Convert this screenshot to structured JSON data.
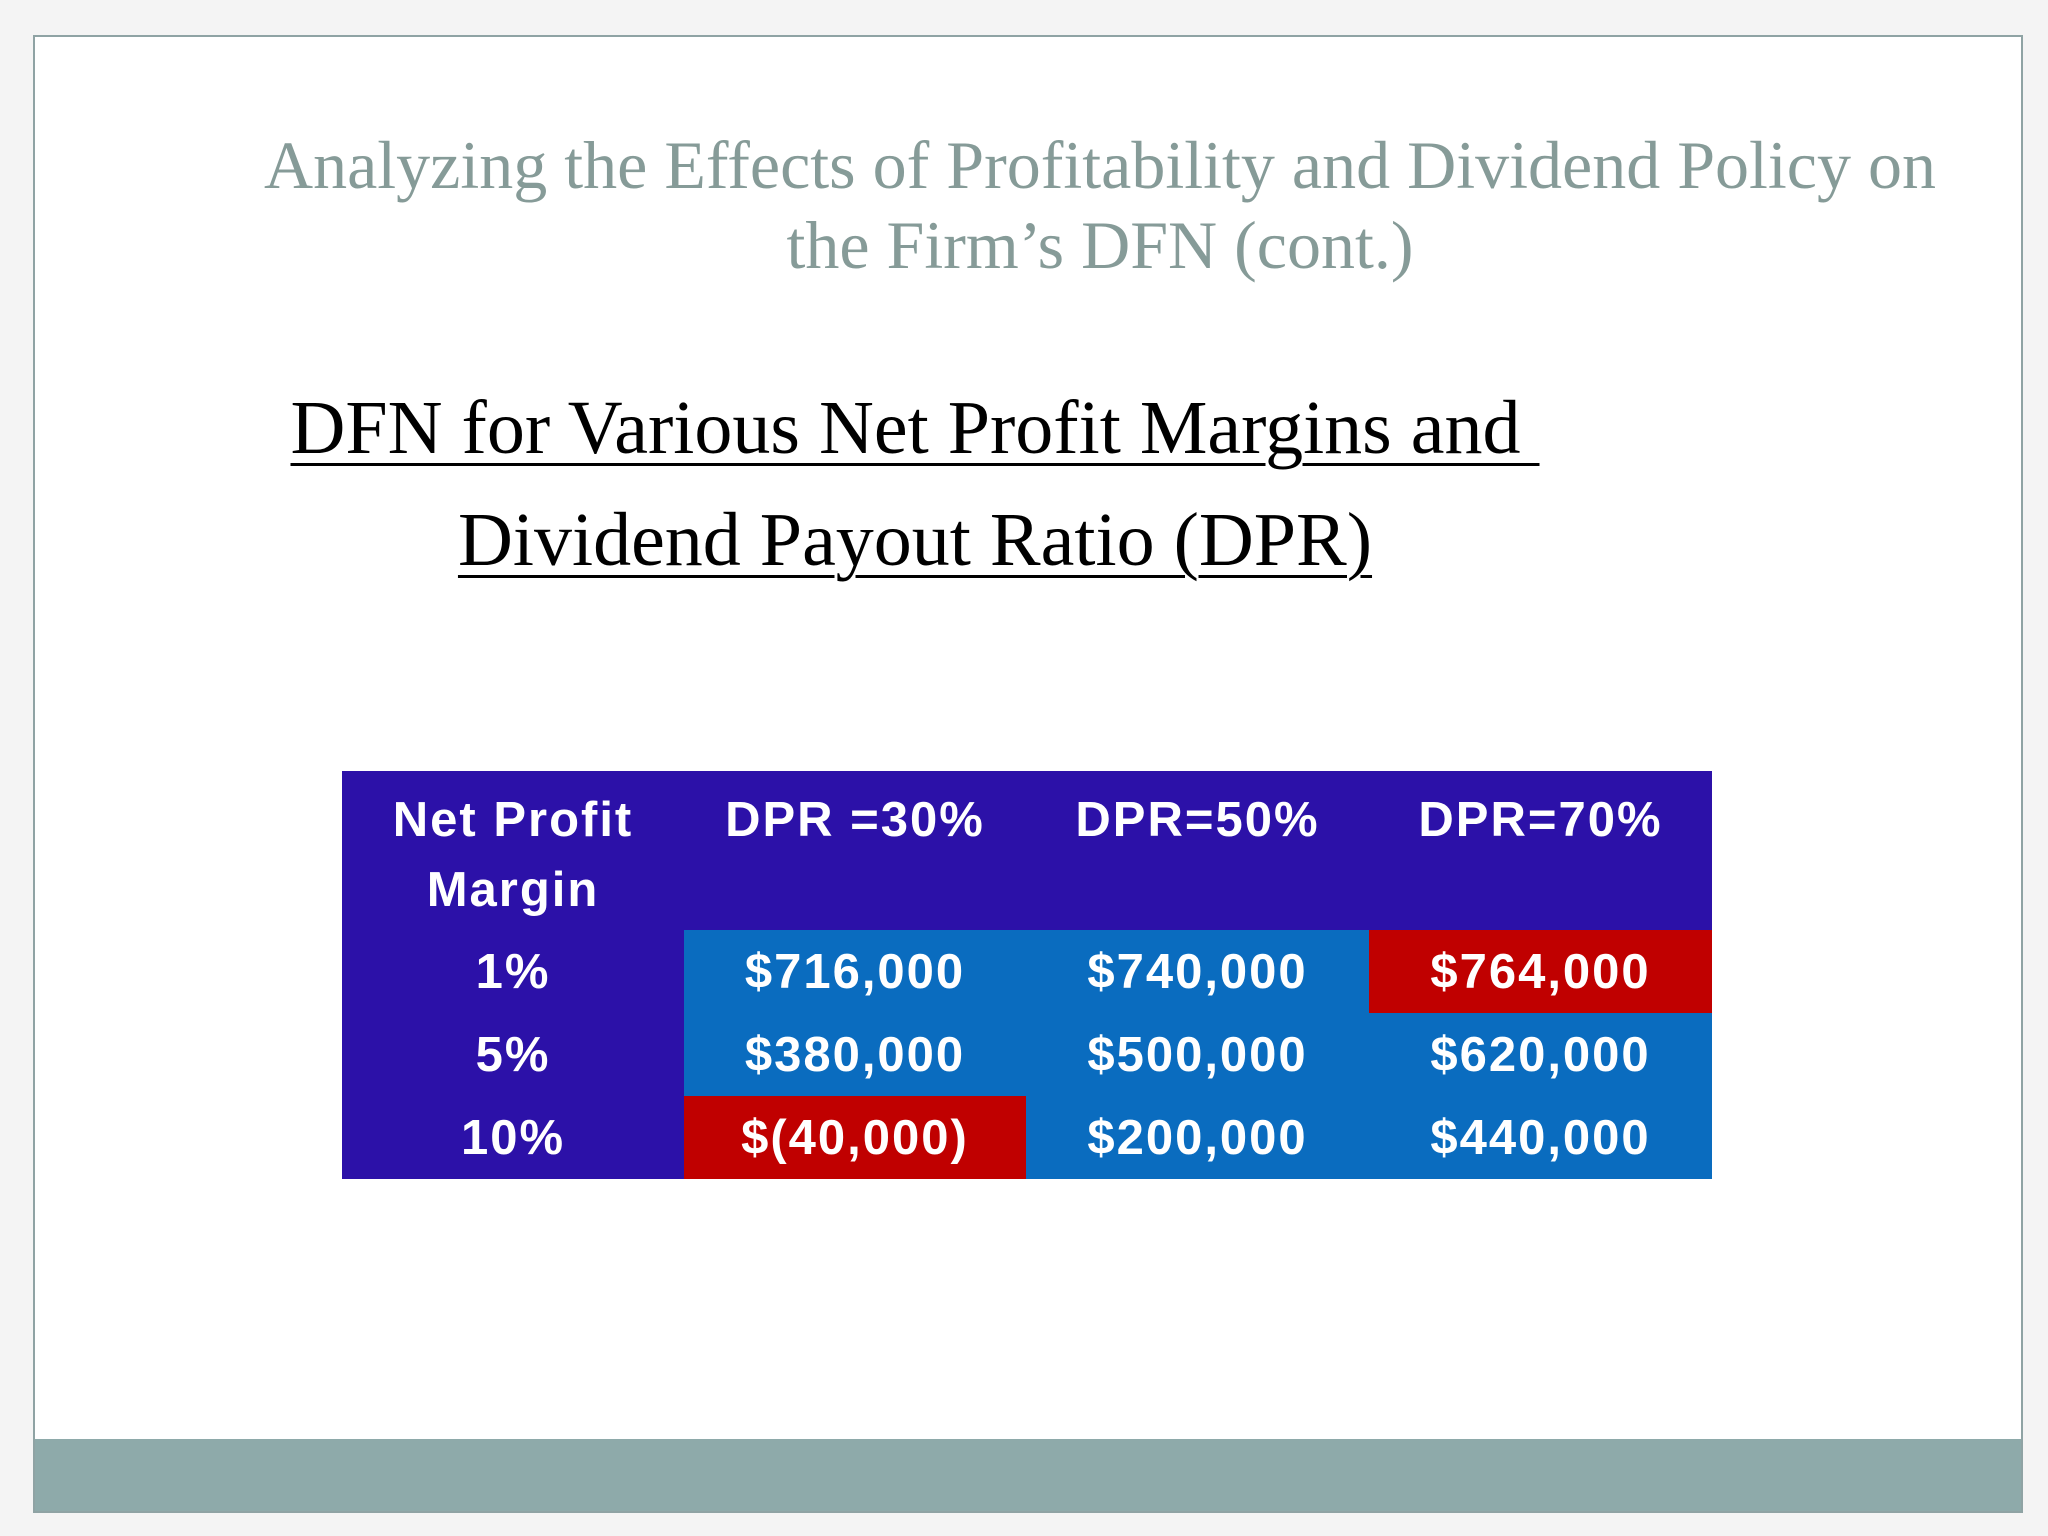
{
  "slide": {
    "title_line1": "Analyzing the Effects of Profitability and Dividend Policy on",
    "title_line2": "the Firm’s DFN (cont.)",
    "subtitle_line1": "DFN for Various Net Profit Margins and ",
    "subtitle_line2": "Dividend Payout Ratio (DPR)"
  },
  "table": {
    "header": {
      "margin_line1": "Net Profit",
      "margin_line2": "Margin",
      "dpr30": "DPR =30%",
      "dpr50": "DPR=50%",
      "dpr70": "DPR=70%"
    },
    "rows": [
      {
        "margin": "1%",
        "dpr30": "$716,000",
        "dpr50": "$740,000",
        "dpr70": "$764,000"
      },
      {
        "margin": "5%",
        "dpr30": "$380,000",
        "dpr50": "$500,000",
        "dpr70": "$620,000"
      },
      {
        "margin": "10%",
        "dpr30": "$(40,000)",
        "dpr50": "$200,000",
        "dpr70": "$440,000"
      }
    ]
  },
  "colors": {
    "title_text": "#869b98",
    "header_background": "#2c11a8",
    "cell_background": "#0a6cbf",
    "highlight_background": "#c00000",
    "footer_bar": "#8eaaaa"
  }
}
